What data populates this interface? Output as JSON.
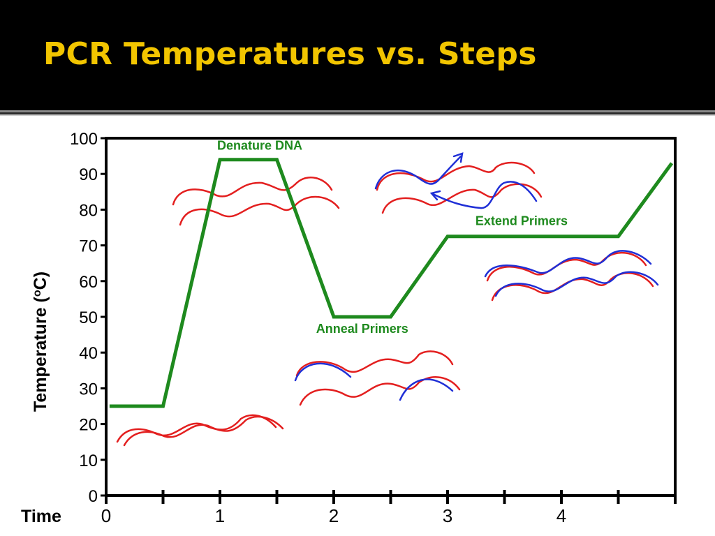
{
  "slide": {
    "title": "PCR Temperatures vs. Steps"
  },
  "chart_data": {
    "type": "line",
    "title": "",
    "xlabel": "Time",
    "ylabel": "Temperature (oC)",
    "ylabel_main": "Temperature (",
    "ylabel_sup": "o",
    "ylabel_end": "C)",
    "xlim": [
      0,
      5
    ],
    "ylim": [
      0,
      100
    ],
    "y_ticks": [
      0,
      10,
      20,
      30,
      40,
      50,
      60,
      70,
      80,
      90,
      100
    ],
    "x_tick_positions": [
      0,
      0.5,
      1,
      1.5,
      2,
      2.5,
      3,
      3.5,
      4,
      4.5,
      5
    ],
    "x_tick_labels": [
      {
        "x": 0,
        "label": "0"
      },
      {
        "x": 1,
        "label": "1"
      },
      {
        "x": 2,
        "label": "2"
      },
      {
        "x": 3,
        "label": "3"
      },
      {
        "x": 4,
        "label": "4"
      }
    ],
    "grid": false,
    "line_color": "#1e8a1e",
    "series": [
      {
        "x": [
          0.03,
          0.5,
          1.0,
          1.5,
          2.0,
          2.5,
          3.0,
          4.5,
          4.97
        ],
        "y": [
          25,
          25,
          94,
          94,
          50,
          50,
          72.5,
          72.5,
          93
        ]
      }
    ],
    "annotations": [
      {
        "text": "Denature DNA",
        "x": 1.35,
        "y": 96.8
      },
      {
        "text": "Anneal Primers",
        "x": 2.25,
        "y": 45.5
      },
      {
        "text": "Extend Primers",
        "x": 3.65,
        "y": 75.7
      }
    ]
  },
  "colors": {
    "title": "#f2c500",
    "line": "#1e8a1e",
    "strand_original": "#e31f1f",
    "strand_new": "#1f2fd6"
  }
}
